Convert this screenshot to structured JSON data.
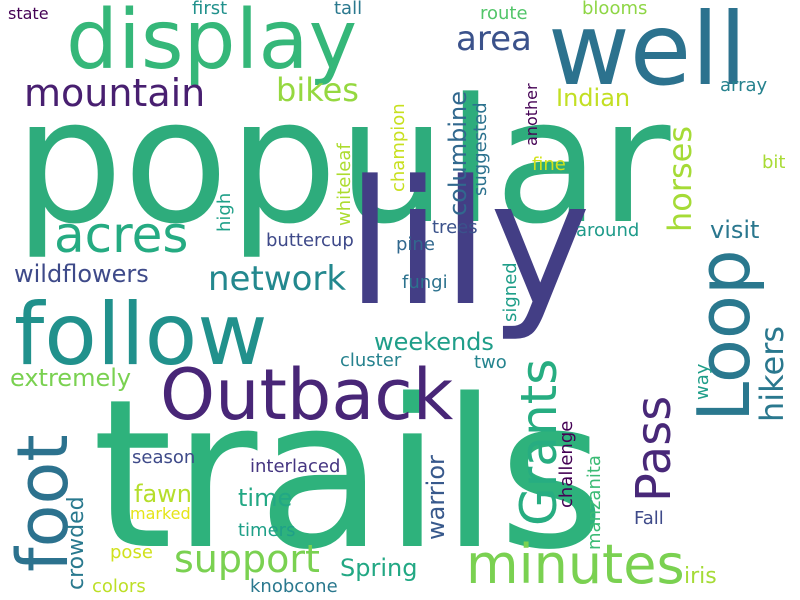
{
  "background": "#ffffff",
  "words": [
    {
      "text": "popular",
      "color": "#2eac7c"
    },
    {
      "text": "trails",
      "color": "#2eb27c"
    },
    {
      "text": "lily",
      "color": "#433e85"
    },
    {
      "text": "display",
      "color": "#35b779"
    },
    {
      "text": "well",
      "color": "#2c728e"
    },
    {
      "text": "follow",
      "color": "#21918c"
    },
    {
      "text": "Outback",
      "color": "#482677"
    },
    {
      "text": "foot",
      "color": "#2c728e"
    },
    {
      "text": "Loop",
      "color": "#2a788e"
    },
    {
      "text": "minutes",
      "color": "#7ad151"
    },
    {
      "text": "Grants",
      "color": "#27ad81"
    },
    {
      "text": "Pass",
      "color": "#482878"
    },
    {
      "text": "acres",
      "color": "#25ab82"
    },
    {
      "text": "mountain",
      "color": "#481f70"
    },
    {
      "text": "support",
      "color": "#7ad151"
    },
    {
      "text": "network",
      "color": "#23888e"
    },
    {
      "text": "area",
      "color": "#3b528b"
    },
    {
      "text": "bikes",
      "color": "#95d840"
    },
    {
      "text": "horses",
      "color": "#a5db36"
    },
    {
      "text": "hikers",
      "color": "#2a788e"
    },
    {
      "text": "wildflowers",
      "color": "#3e4a89"
    },
    {
      "text": "weekends",
      "color": "#1f9e89"
    },
    {
      "text": "extremely",
      "color": "#7ad151"
    },
    {
      "text": "columbine",
      "color": "#31688e"
    },
    {
      "text": "Indian",
      "color": "#c2df23"
    },
    {
      "text": "visit",
      "color": "#2a778e"
    },
    {
      "text": "time",
      "color": "#22a884"
    },
    {
      "text": "fawn",
      "color": "#b5de2b"
    },
    {
      "text": "Spring",
      "color": "#22a884"
    },
    {
      "text": "warrior",
      "color": "#38598c"
    },
    {
      "text": "crowded",
      "color": "#29798e"
    },
    {
      "text": "iris",
      "color": "#a5db36"
    },
    {
      "text": "state",
      "color": "#440154"
    },
    {
      "text": "first",
      "color": "#21918c"
    },
    {
      "text": "tall",
      "color": "#2a788e"
    },
    {
      "text": "route",
      "color": "#52c569"
    },
    {
      "text": "blooms",
      "color": "#8ed645"
    },
    {
      "text": "array",
      "color": "#26828e"
    },
    {
      "text": "bit",
      "color": "#a8db34"
    },
    {
      "text": "fine",
      "color": "#d2e21b"
    },
    {
      "text": "another",
      "color": "#440154"
    },
    {
      "text": "suggested",
      "color": "#2c728e"
    },
    {
      "text": "champion",
      "color": "#c8e020"
    },
    {
      "text": "whiteleaf",
      "color": "#addc30"
    },
    {
      "text": "high",
      "color": "#1fa088"
    },
    {
      "text": "buttercup",
      "color": "#3e4989"
    },
    {
      "text": "trees",
      "color": "#3b528b"
    },
    {
      "text": "pine",
      "color": "#31688e"
    },
    {
      "text": "around",
      "color": "#1e9b8a"
    },
    {
      "text": "fungi",
      "color": "#2c728e"
    },
    {
      "text": "signed",
      "color": "#1f9e89"
    },
    {
      "text": "cluster",
      "color": "#26828e"
    },
    {
      "text": "two",
      "color": "#25848e"
    },
    {
      "text": "way",
      "color": "#1f9e89"
    },
    {
      "text": "season",
      "color": "#3e4a89"
    },
    {
      "text": "interlaced",
      "color": "#453581"
    },
    {
      "text": "marked",
      "color": "#e5e419"
    },
    {
      "text": "timers",
      "color": "#1fa088"
    },
    {
      "text": "pose",
      "color": "#d0e11c"
    },
    {
      "text": "colors",
      "color": "#bddf26"
    },
    {
      "text": "knobcone",
      "color": "#2a788e"
    },
    {
      "text": "challenge",
      "color": "#440154"
    },
    {
      "text": "manzanita",
      "color": "#3bbb75"
    },
    {
      "text": "Fall",
      "color": "#3e4a89"
    }
  ]
}
